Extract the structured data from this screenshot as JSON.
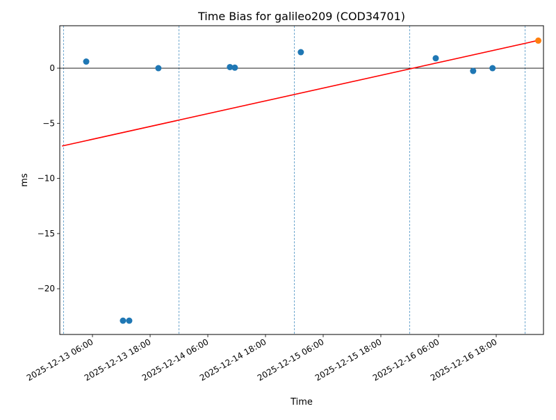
{
  "chart_data": {
    "type": "scatter",
    "title": "Time Bias for galileo209 (COD34701)",
    "xlabel": "Time",
    "ylabel": "ms",
    "xlim": [
      "2025-12-12 23:12",
      "2025-12-17 03:50"
    ],
    "ylim": [
      -24.15,
      3.85
    ],
    "yticks": [
      0,
      -5,
      -10,
      -15,
      -20
    ],
    "ytick_labels": [
      "0",
      "−5",
      "−10",
      "−15",
      "−20"
    ],
    "xticks": [
      "2025-12-13 06:00",
      "2025-12-13 18:00",
      "2025-12-14 06:00",
      "2025-12-14 18:00",
      "2025-12-15 06:00",
      "2025-12-15 18:00",
      "2025-12-16 06:00",
      "2025-12-16 18:00"
    ],
    "day_lines": [
      "2025-12-13 00:00",
      "2025-12-14 00:00",
      "2025-12-15 00:00",
      "2025-12-16 00:00",
      "2025-12-17 00:00"
    ],
    "zero_line": 0,
    "grid": false,
    "series": [
      {
        "color": "#1f77b4",
        "x": [
          "2025-12-13 04:42",
          "2025-12-13 12:21",
          "2025-12-13 13:39",
          "2025-12-13 19:43",
          "2025-12-14 10:36",
          "2025-12-14 11:37",
          "2025-12-15 01:21",
          "2025-12-16 05:25",
          "2025-12-16 13:12",
          "2025-12-16 17:14"
        ],
        "y": [
          0.6,
          -22.9,
          -22.9,
          0.0,
          0.1,
          0.05,
          1.45,
          0.9,
          -0.25,
          0.0
        ]
      },
      {
        "color": "#ff7f0e",
        "x": [
          "2025-12-17 02:45"
        ],
        "y": [
          2.5
        ]
      }
    ],
    "trend_line": {
      "color": "#ff0000",
      "x": [
        "2025-12-12 23:40",
        "2025-12-17 02:45"
      ],
      "y": [
        -7.06,
        2.52
      ]
    }
  }
}
